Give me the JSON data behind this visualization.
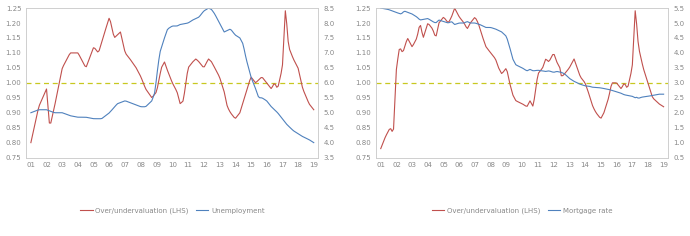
{
  "left_chart": {
    "xlabels": [
      "01",
      "02",
      "03",
      "04",
      "05",
      "06",
      "07",
      "08",
      "09",
      "10",
      "11",
      "12",
      "13",
      "14",
      "15",
      "16",
      "17",
      "18",
      "19"
    ],
    "ylim_left": [
      0.75,
      1.25
    ],
    "ylim_right": [
      3.5,
      8.5
    ],
    "yticks_left": [
      0.75,
      0.8,
      0.85,
      0.9,
      0.95,
      1.0,
      1.05,
      1.1,
      1.15,
      1.2,
      1.25
    ],
    "yticks_right": [
      3.5,
      4.0,
      4.5,
      5.0,
      5.5,
      6.0,
      6.5,
      7.0,
      7.5,
      8.0,
      8.5
    ],
    "hline": 1.0,
    "valuation_color": "#c0504d",
    "unemployment_color": "#4f81bd",
    "hline_color": "#c8c820",
    "legend_valuation": "Over/undervaluation (LHS)",
    "legend_unemployment": "Unemployment"
  },
  "right_chart": {
    "xlabels": [
      "01",
      "02",
      "03",
      "04",
      "05",
      "06",
      "07",
      "08",
      "09",
      "10",
      "11",
      "12",
      "13",
      "14",
      "15",
      "16",
      "17",
      "18",
      "19"
    ],
    "ylim_left": [
      0.75,
      1.25
    ],
    "ylim_right": [
      0.5,
      5.5
    ],
    "yticks_left": [
      0.75,
      0.8,
      0.85,
      0.9,
      0.95,
      1.0,
      1.05,
      1.1,
      1.15,
      1.2,
      1.25
    ],
    "yticks_right": [
      0.5,
      1.0,
      1.5,
      2.0,
      2.5,
      3.0,
      3.5,
      4.0,
      4.5,
      5.0,
      5.5
    ],
    "hline": 1.0,
    "valuation_color": "#c0504d",
    "mortgage_color": "#4f81bd",
    "hline_color": "#c8c820",
    "legend_valuation": "Over/undervaluation (LHS)",
    "legend_mortgage": "Mortgage rate"
  },
  "background_color": "#ffffff",
  "text_color": "#888888",
  "font_size": 5.5,
  "line_width": 0.8
}
